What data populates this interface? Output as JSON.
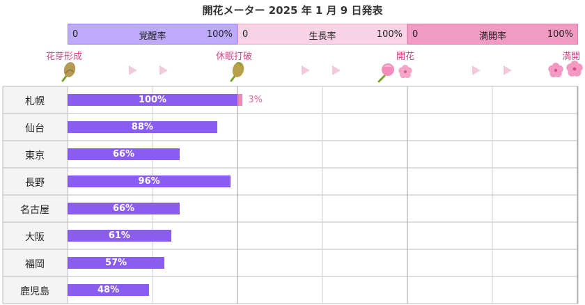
{
  "title": "開花メーター 2025 年 1 月 9 日発表",
  "scale": [
    {
      "zero": "0",
      "name": "覚醒率",
      "hundred": "100%",
      "color": "#beaafa",
      "border": "#9a7ff0"
    },
    {
      "zero": "0",
      "name": "生長率",
      "hundred": "100%",
      "color": "#f8d3e5",
      "border": "#e8a8c6"
    },
    {
      "zero": "0",
      "name": "満開率",
      "hundred": "100%",
      "color": "#f19bc2",
      "border": "#e07aa8"
    }
  ],
  "stages": [
    "花芽形成",
    "休眠打破",
    "開花",
    "満開"
  ],
  "colors": {
    "awakening": "#8a5cf0",
    "growth": "#ee86b6",
    "growth_label": "#e06ea0"
  },
  "chart_data": {
    "type": "bar",
    "title": "開花メーター 2025 年 1 月 9 日発表",
    "categories": [
      "札幌",
      "仙台",
      "東京",
      "長野",
      "名古屋",
      "大阪",
      "福岡",
      "鹿児島"
    ],
    "series": [
      {
        "name": "覚醒率",
        "values": [
          100,
          88,
          66,
          96,
          66,
          61,
          57,
          48
        ],
        "labels": [
          "100%",
          "88%",
          "66%",
          "96%",
          "66%",
          "61%",
          "57%",
          "48%"
        ]
      },
      {
        "name": "生長率",
        "values": [
          3,
          0,
          0,
          0,
          0,
          0,
          0,
          0
        ],
        "labels": [
          "3%",
          "",
          "",
          "",
          "",
          "",
          "",
          ""
        ]
      }
    ],
    "ylim": [
      0,
      100
    ],
    "grid": true
  }
}
